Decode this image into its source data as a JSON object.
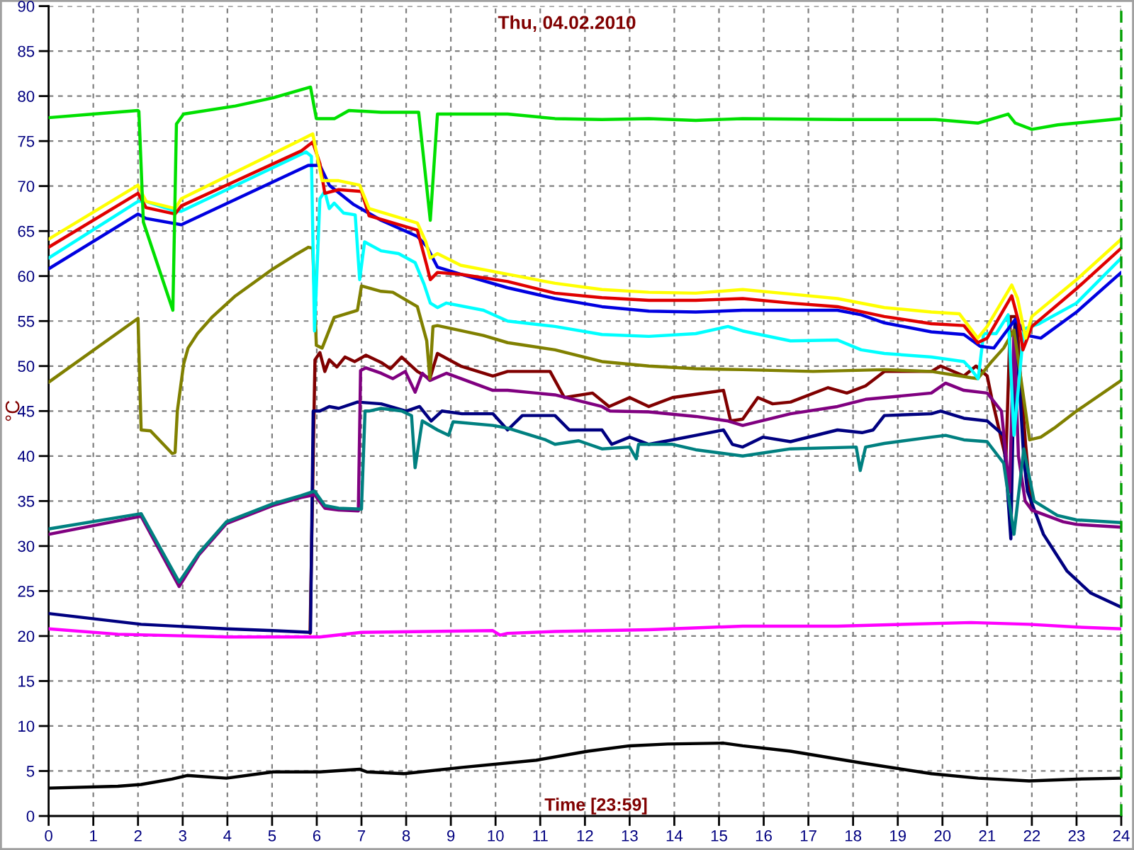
{
  "chart_data": {
    "type": "line",
    "title": "Thu, 04.02.2010",
    "xlabel": "Time [23:59]",
    "ylabel": "°C",
    "xlim": [
      0,
      24
    ],
    "ylim": [
      0,
      90
    ],
    "xticks": [
      0,
      1,
      2,
      3,
      4,
      5,
      6,
      7,
      8,
      9,
      10,
      11,
      12,
      13,
      14,
      15,
      16,
      17,
      18,
      19,
      20,
      21,
      22,
      23,
      24
    ],
    "yticks": [
      0,
      5,
      10,
      15,
      20,
      25,
      30,
      35,
      40,
      45,
      50,
      55,
      60,
      65,
      70,
      75,
      80,
      85,
      90
    ],
    "grid": true,
    "line_style": "solid",
    "ref_lines": [
      {
        "axis": "x",
        "value": 24,
        "color": "#00a000",
        "line_style": "dashed"
      }
    ],
    "series": [
      {
        "color": "#000000",
        "x": [
          0,
          1.55,
          2.07,
          2.76,
          3.1,
          3.98,
          5.02,
          6.07,
          6.96,
          7.12,
          7.95,
          9.25,
          10.91,
          12.07,
          13.0,
          13.85,
          15.1,
          15.53,
          16.6,
          18.18,
          19.75,
          20.8,
          21.94,
          23.0,
          24
        ],
        "values": [
          3.1,
          3.3,
          3.5,
          4.1,
          4.5,
          4.2,
          4.9,
          4.9,
          5.2,
          4.9,
          4.7,
          5.4,
          6.2,
          7.2,
          7.8,
          8.0,
          8.1,
          7.8,
          7.2,
          5.9,
          4.7,
          4.2,
          3.9,
          4.1,
          4.2
        ]
      },
      {
        "color": "#ff00ff",
        "x": [
          0,
          1.55,
          3.98,
          6.07,
          7.0,
          9.94,
          10.1,
          10.27,
          11.33,
          12.38,
          13.43,
          15.53,
          17.65,
          20.64,
          21.94,
          23.0,
          24
        ],
        "values": [
          20.8,
          20.2,
          19.9,
          19.9,
          20.4,
          20.6,
          20.1,
          20.3,
          20.5,
          20.6,
          20.7,
          21.1,
          21.1,
          21.5,
          21.3,
          21.0,
          20.8
        ]
      },
      {
        "color": "#800000",
        "x": [
          5.85,
          5.96,
          6.07,
          6.18,
          6.28,
          6.45,
          6.63,
          6.85,
          7.1,
          7.44,
          7.65,
          7.9,
          8.25,
          8.53,
          8.7,
          9.22,
          9.94,
          10.27,
          11.22,
          11.54,
          12.17,
          12.54,
          13.0,
          13.43,
          13.96,
          15.1,
          15.26,
          15.53,
          15.87,
          16.2,
          16.6,
          17.44,
          17.86,
          18.28,
          18.7,
          19.75,
          19.96,
          20.48,
          20.75,
          21.0,
          21.1,
          21.42,
          21.52,
          21.66,
          21.74,
          21.86,
          22.0
        ],
        "values": [
          20.3,
          50.7,
          51.5,
          49.4,
          50.7,
          49.9,
          51.0,
          50.5,
          51.2,
          50.4,
          49.7,
          51.0,
          49.4,
          48.6,
          51.4,
          50.0,
          48.9,
          49.4,
          49.4,
          46.5,
          47.0,
          45.5,
          46.5,
          45.5,
          46.5,
          47.3,
          43.9,
          44.1,
          46.5,
          45.8,
          46.0,
          47.6,
          47.0,
          47.8,
          49.4,
          49.4,
          50.0,
          48.9,
          50.0,
          48.9,
          46.5,
          39.7,
          55.5,
          55.5,
          49.2,
          41.3,
          34.0
        ]
      },
      {
        "color": "#000080",
        "x": [
          0,
          2.07,
          3.98,
          5.02,
          5.86,
          5.92,
          6.07,
          6.28,
          6.49,
          6.91,
          7.44,
          8.0,
          8.3,
          8.56,
          8.8,
          9.25,
          9.94,
          10.27,
          10.6,
          11.33,
          11.65,
          12.38,
          12.6,
          13.0,
          13.43,
          13.96,
          14.48,
          15.1,
          15.3,
          15.53,
          15.98,
          16.6,
          17.65,
          18.2,
          18.45,
          18.7,
          19.75,
          19.96,
          20.48,
          21.0,
          21.37,
          21.53,
          21.62,
          21.72,
          21.82,
          21.9,
          22.26,
          22.79,
          23.31,
          24
        ],
        "values": [
          22.5,
          21.3,
          20.8,
          20.6,
          20.4,
          45.0,
          45.0,
          45.5,
          45.3,
          46.0,
          45.8,
          45.0,
          45.5,
          43.9,
          45.0,
          44.7,
          44.7,
          42.9,
          44.5,
          44.5,
          42.9,
          42.9,
          41.3,
          42.1,
          41.3,
          41.8,
          42.3,
          42.9,
          41.3,
          41.0,
          42.1,
          41.6,
          42.9,
          42.6,
          42.9,
          44.5,
          44.7,
          45.0,
          44.2,
          43.9,
          42.3,
          30.8,
          55.0,
          48.0,
          39.7,
          36.1,
          31.3,
          27.2,
          24.8,
          23.2
        ]
      },
      {
        "color": "#800080",
        "x": [
          0,
          2.07,
          2.92,
          3.36,
          3.98,
          5.02,
          5.65,
          5.95,
          6.18,
          6.49,
          6.93,
          6.98,
          7.1,
          7.44,
          7.7,
          7.98,
          8.2,
          8.36,
          8.53,
          8.9,
          9.94,
          10.27,
          11.33,
          12.38,
          12.56,
          13.43,
          14.48,
          15.2,
          15.53,
          16.6,
          17.65,
          18.28,
          18.7,
          19.75,
          20.07,
          20.48,
          21.0,
          21.32,
          21.5,
          21.6,
          21.7,
          21.85,
          22.0,
          22.7,
          23.0,
          24
        ],
        "values": [
          31.3,
          33.3,
          25.5,
          29.0,
          32.5,
          34.5,
          35.4,
          35.7,
          34.2,
          34.0,
          33.9,
          49.5,
          49.8,
          49.2,
          48.6,
          49.4,
          47.1,
          49.2,
          48.4,
          49.2,
          47.3,
          47.3,
          46.8,
          45.5,
          45.0,
          44.9,
          44.4,
          43.9,
          43.4,
          44.7,
          45.5,
          46.3,
          46.5,
          47.0,
          48.1,
          47.3,
          47.0,
          45.0,
          36.0,
          54.0,
          40.0,
          35.0,
          34.0,
          32.7,
          32.4,
          32.1
        ]
      },
      {
        "color": "#008080",
        "x": [
          0,
          2.07,
          2.92,
          3.36,
          3.98,
          5.02,
          5.65,
          5.95,
          6.18,
          6.49,
          7.0,
          7.08,
          7.17,
          7.44,
          7.9,
          8.12,
          8.2,
          8.36,
          8.7,
          8.95,
          9.05,
          9.94,
          10.27,
          11.12,
          11.33,
          11.86,
          12.38,
          13.0,
          13.15,
          13.2,
          13.96,
          14.48,
          15.53,
          16.6,
          18.07,
          18.16,
          18.28,
          18.7,
          19.75,
          20.07,
          20.48,
          21.0,
          21.37,
          21.6,
          21.82,
          22.05,
          22.57,
          23.0,
          24
        ],
        "values": [
          31.9,
          33.6,
          26.0,
          29.2,
          32.7,
          34.7,
          35.6,
          36.1,
          34.5,
          34.2,
          34.1,
          45.0,
          45.0,
          45.3,
          45.0,
          44.5,
          38.7,
          43.9,
          42.9,
          42.3,
          43.8,
          43.4,
          43.1,
          41.8,
          41.3,
          41.7,
          40.8,
          41.0,
          39.7,
          41.3,
          41.3,
          40.7,
          40.0,
          40.8,
          41.0,
          38.4,
          41.0,
          41.4,
          42.1,
          42.3,
          41.8,
          41.6,
          39.2,
          31.3,
          40.8,
          35.0,
          33.4,
          32.9,
          32.6
        ]
      },
      {
        "color": "#808000",
        "x": [
          0,
          2.0,
          2.07,
          2.28,
          2.76,
          2.83,
          2.88,
          3.02,
          3.12,
          3.33,
          3.65,
          4.18,
          5.02,
          5.5,
          5.81,
          5.91,
          5.99,
          6.12,
          6.39,
          6.91,
          7.0,
          7.44,
          7.7,
          8.25,
          8.46,
          8.53,
          8.6,
          8.7,
          9.73,
          10.27,
          11.33,
          12.38,
          13.43,
          14.48,
          15.53,
          17.1,
          18.7,
          19.75,
          20.64,
          20.79,
          21.1,
          21.37,
          21.6,
          21.95,
          22.2,
          22.5,
          23.0,
          24
        ],
        "values": [
          48.2,
          55.3,
          42.9,
          42.8,
          40.3,
          40.4,
          45.0,
          50.2,
          52.0,
          53.6,
          55.4,
          57.8,
          60.8,
          62.3,
          63.2,
          63.1,
          52.3,
          52.0,
          55.4,
          56.2,
          58.9,
          58.3,
          58.2,
          56.6,
          52.8,
          48.6,
          54.4,
          54.5,
          53.4,
          52.6,
          51.8,
          50.5,
          50.0,
          49.7,
          49.6,
          49.4,
          49.6,
          49.4,
          48.7,
          48.6,
          50.5,
          52.0,
          54.0,
          41.8,
          42.1,
          43.1,
          45.0,
          48.4
        ]
      },
      {
        "color": "#00ffff",
        "x": [
          0,
          2.0,
          2.18,
          2.83,
          2.97,
          5.76,
          5.88,
          5.95,
          6.07,
          6.18,
          6.28,
          6.39,
          6.6,
          6.86,
          6.96,
          7.07,
          7.44,
          7.83,
          8.2,
          8.4,
          8.54,
          8.7,
          8.9,
          9.73,
          10.27,
          11.33,
          12.38,
          13.43,
          14.48,
          15.2,
          15.53,
          16.6,
          17.65,
          18.18,
          18.7,
          19.75,
          20.48,
          20.63,
          20.8,
          20.92,
          21.2,
          21.47,
          21.6,
          21.82,
          22.16,
          23.0,
          24
        ],
        "values": [
          62.0,
          68.3,
          68.3,
          67.2,
          67.2,
          73.8,
          73.3,
          53.9,
          68.6,
          69.4,
          67.5,
          68.1,
          67.0,
          66.8,
          59.6,
          63.8,
          62.8,
          62.5,
          61.5,
          59.1,
          57.0,
          56.5,
          57.0,
          56.2,
          55.0,
          54.4,
          53.5,
          53.3,
          53.6,
          54.4,
          53.9,
          52.8,
          52.9,
          51.8,
          51.4,
          51.0,
          50.5,
          49.7,
          48.6,
          53.6,
          53.6,
          55.7,
          42.3,
          54.1,
          54.7,
          57.0,
          62.0
        ]
      },
      {
        "color": "#0000e0",
        "x": [
          0,
          2.0,
          2.18,
          2.97,
          5.81,
          6.07,
          6.28,
          6.81,
          7.44,
          8.25,
          8.46,
          8.7,
          9.22,
          10.27,
          11.33,
          12.38,
          13.43,
          14.48,
          15.53,
          17.65,
          18.18,
          18.7,
          19.75,
          20.48,
          20.84,
          21.15,
          21.63,
          21.9,
          22.2,
          23.0,
          24
        ],
        "values": [
          60.8,
          66.9,
          66.4,
          65.7,
          72.3,
          72.3,
          70.1,
          68.0,
          66.2,
          64.4,
          63.3,
          61.0,
          60.2,
          58.7,
          57.5,
          56.6,
          56.1,
          56.0,
          56.2,
          56.2,
          55.7,
          54.8,
          53.8,
          53.5,
          52.2,
          52.0,
          55.2,
          53.4,
          53.1,
          56.0,
          60.4
        ]
      },
      {
        "color": "#e00000",
        "x": [
          0,
          2.0,
          2.18,
          2.83,
          2.97,
          5.65,
          5.91,
          6.07,
          6.18,
          6.49,
          7.0,
          7.17,
          8.25,
          8.46,
          8.54,
          8.7,
          9.22,
          10.27,
          11.33,
          12.38,
          13.43,
          14.48,
          15.53,
          16.6,
          17.65,
          18.7,
          19.75,
          20.48,
          20.79,
          21.0,
          21.55,
          21.7,
          21.8,
          22.0,
          23.0,
          24
        ],
        "values": [
          63.2,
          69.2,
          67.6,
          66.9,
          67.8,
          73.9,
          74.9,
          72.5,
          69.2,
          69.6,
          69.4,
          66.7,
          65.1,
          61.2,
          59.6,
          60.4,
          60.2,
          59.4,
          58.1,
          57.6,
          57.3,
          57.3,
          57.5,
          57.0,
          56.6,
          55.5,
          54.7,
          54.5,
          52.6,
          53.1,
          57.8,
          55.0,
          51.8,
          54.4,
          58.6,
          63.1
        ]
      },
      {
        "color": "#ffff00",
        "x": [
          0,
          2.0,
          2.18,
          2.83,
          2.97,
          5.55,
          5.91,
          6.12,
          6.49,
          6.96,
          7.17,
          8.25,
          8.44,
          8.54,
          8.7,
          9.22,
          10.27,
          11.33,
          12.38,
          13.43,
          14.48,
          15.53,
          16.6,
          17.65,
          18.7,
          19.75,
          20.38,
          20.79,
          21.0,
          21.55,
          21.68,
          21.86,
          22.0,
          23.0,
          24
        ],
        "values": [
          64.1,
          70.1,
          68.3,
          67.5,
          68.6,
          74.9,
          75.8,
          70.6,
          70.6,
          70.1,
          67.5,
          65.9,
          63.8,
          62.0,
          62.5,
          61.2,
          60.2,
          59.2,
          58.5,
          58.2,
          58.1,
          58.5,
          58.0,
          57.5,
          56.5,
          56.0,
          55.8,
          53.1,
          54.4,
          59.0,
          57.5,
          53.1,
          55.5,
          59.6,
          64.1
        ]
      },
      {
        "color": "#00e000",
        "x": [
          0,
          1,
          2.0,
          2.02,
          2.12,
          2.78,
          2.86,
          3.02,
          4.18,
          5.02,
          5.86,
          5.99,
          6.4,
          6.72,
          7.44,
          8.28,
          8.54,
          8.7,
          10.27,
          11.33,
          12.38,
          13.43,
          14.48,
          15.53,
          17.74,
          19.84,
          20.79,
          21.47,
          21.63,
          22.0,
          22.58,
          24
        ],
        "values": [
          77.6,
          78.0,
          78.4,
          78.3,
          66.0,
          56.2,
          76.9,
          78.0,
          78.9,
          79.8,
          81.0,
          77.5,
          77.5,
          78.4,
          78.2,
          78.2,
          66.2,
          78.0,
          78.0,
          77.5,
          77.4,
          77.5,
          77.3,
          77.5,
          77.4,
          77.4,
          77.0,
          78.0,
          77.0,
          76.3,
          76.8,
          77.5
        ]
      }
    ]
  }
}
